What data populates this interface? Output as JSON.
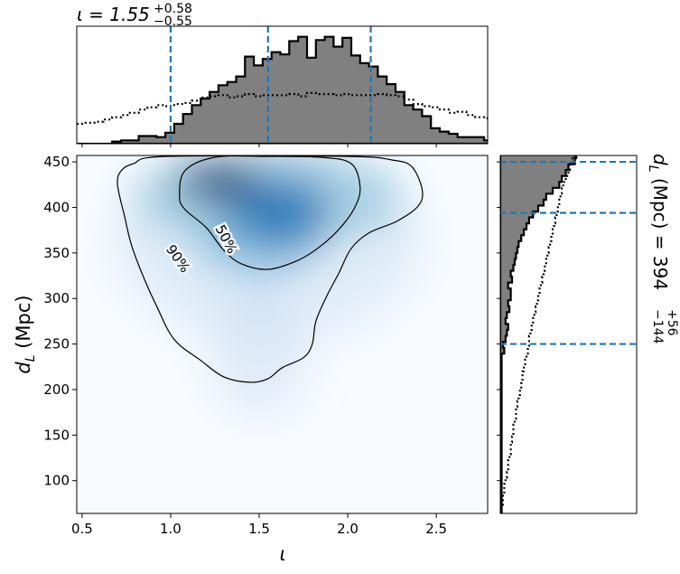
{
  "chart_data": [
    {
      "type": "heatmap",
      "name": "joint posterior",
      "xlabel": "ι",
      "ylabel_main": "d",
      "ylabel_sub": "L",
      "ylabel_unit": "(Mpc)",
      "xlim": [
        0.47,
        2.79
      ],
      "ylim": [
        64,
        457
      ],
      "xticks": [
        0.5,
        1.0,
        1.5,
        2.0,
        2.5
      ],
      "xtick_labels": [
        "0.5",
        "1.0",
        "1.5",
        "2.0",
        "2.5"
      ],
      "yticks": [
        100,
        150,
        200,
        250,
        300,
        350,
        400,
        450
      ],
      "ytick_labels": [
        "100",
        "150",
        "200",
        "250",
        "300",
        "350",
        "400",
        "450"
      ],
      "colormap": "Blues",
      "density_peaks": [
        {
          "x": 1.27,
          "y": 428,
          "weight": 1.0
        },
        {
          "x": 1.62,
          "y": 395,
          "weight": 0.85
        },
        {
          "x": 1.5,
          "y": 360,
          "weight": 0.45
        },
        {
          "x": 1.5,
          "y": 240,
          "weight": 0.12
        }
      ],
      "contours": [
        {
          "label": "50%",
          "level": 0.5,
          "points": [
            [
              1.05,
              412
            ],
            [
              1.08,
              440
            ],
            [
              1.25,
              455
            ],
            [
              1.55,
              456
            ],
            [
              1.85,
              455
            ],
            [
              2.02,
              448
            ],
            [
              2.07,
              422
            ],
            [
              2.04,
              400
            ],
            [
              1.96,
              378
            ],
            [
              1.85,
              358
            ],
            [
              1.72,
              342
            ],
            [
              1.55,
              332
            ],
            [
              1.4,
              338
            ],
            [
              1.3,
              353
            ],
            [
              1.2,
              378
            ],
            [
              1.08,
              398
            ]
          ]
        },
        {
          "label": "90%",
          "level": 0.9,
          "points": [
            [
              0.79,
              448
            ],
            [
              0.98,
              456
            ],
            [
              2.0,
              456
            ],
            [
              2.25,
              452
            ],
            [
              2.36,
              445
            ],
            [
              2.42,
              420
            ],
            [
              2.4,
              402
            ],
            [
              2.28,
              385
            ],
            [
              2.12,
              372
            ],
            [
              2.02,
              355
            ],
            [
              1.95,
              328
            ],
            [
              1.88,
              302
            ],
            [
              1.82,
              275
            ],
            [
              1.8,
              250
            ],
            [
              1.75,
              235
            ],
            [
              1.63,
              224
            ],
            [
              1.55,
              212
            ],
            [
              1.45,
              208
            ],
            [
              1.3,
              214
            ],
            [
              1.17,
              232
            ],
            [
              1.02,
              255
            ],
            [
              0.92,
              292
            ],
            [
              0.85,
              322
            ],
            [
              0.78,
              358
            ],
            [
              0.74,
              390
            ],
            [
              0.7,
              425
            ],
            [
              0.72,
              440
            ]
          ]
        }
      ],
      "contour_label_text": [
        "50%",
        "90%"
      ]
    },
    {
      "type": "bar",
      "name": "ι marginal histogram",
      "title_prefix": "ι = 1.55",
      "title_plus": "+0.58",
      "title_minus": "−0.55",
      "median": 1.55,
      "lower": 1.0,
      "upper": 2.13,
      "bin_start": 0.47,
      "bin_width": 0.05,
      "counts": [
        0,
        0,
        0,
        0,
        0.02,
        0.03,
        0.03,
        0.07,
        0.07,
        0.06,
        0.1,
        0.18,
        0.27,
        0.35,
        0.41,
        0.47,
        0.53,
        0.56,
        0.61,
        0.79,
        0.71,
        0.77,
        0.83,
        0.81,
        0.93,
        0.97,
        0.78,
        0.94,
        0.97,
        0.88,
        0.96,
        0.8,
        0.73,
        0.7,
        0.61,
        0.54,
        0.47,
        0.35,
        0.31,
        0.25,
        0.14,
        0.11,
        0.09,
        0.06,
        0.06,
        0.06,
        0.03,
        0.03,
        0.01,
        0.01,
        0,
        0
      ],
      "prior_dotted": [
        0.18,
        0.19,
        0.2,
        0.22,
        0.24,
        0.26,
        0.28,
        0.31,
        0.33,
        0.35,
        0.34,
        0.36,
        0.37,
        0.39,
        0.42,
        0.43,
        0.44,
        0.42,
        0.43,
        0.45,
        0.43,
        0.44,
        0.44,
        0.44,
        0.45,
        0.43,
        0.46,
        0.45,
        0.45,
        0.44,
        0.45,
        0.44,
        0.44,
        0.44,
        0.45,
        0.44,
        0.43,
        0.4,
        0.36,
        0.34,
        0.33,
        0.31,
        0.28,
        0.29,
        0.26,
        0.24,
        0.23,
        0.21,
        0.19,
        0.18,
        0.16,
        0.15
      ]
    },
    {
      "type": "bar",
      "name": "d_L marginal histogram",
      "title_text": "d",
      "title_sub": "L",
      "title_unit": "(Mpc) = 394",
      "title_plus": "+56",
      "title_minus": "−144",
      "median": 394,
      "lower": 250,
      "upper": 450,
      "bin_start": 64,
      "bin_width": 6.5,
      "counts": [
        0.01,
        0.01,
        0.01,
        0.01,
        0.01,
        0.01,
        0.01,
        0.01,
        0.01,
        0.01,
        0.01,
        0.01,
        0.01,
        0.01,
        0.01,
        0.01,
        0.01,
        0.01,
        0.01,
        0.01,
        0.01,
        0.01,
        0.01,
        0.01,
        0.01,
        0.01,
        0.01,
        0.03,
        0.02,
        0.04,
        0.05,
        0.06,
        0.04,
        0.05,
        0.07,
        0.06,
        0.08,
        0.08,
        0.06,
        0.09,
        0.08,
        0.1,
        0.11,
        0.12,
        0.13,
        0.14,
        0.16,
        0.18,
        0.2,
        0.22,
        0.25,
        0.29,
        0.33,
        0.35,
        0.4,
        0.45,
        0.47,
        0.5,
        0.52,
        0.57,
        0.58,
        0.62,
        0.61
      ],
      "prior_dotted": [
        0.01,
        0.02,
        0.02,
        0.03,
        0.03,
        0.04,
        0.05,
        0.06,
        0.06,
        0.07,
        0.08,
        0.08,
        0.09,
        0.1,
        0.1,
        0.11,
        0.12,
        0.12,
        0.13,
        0.14,
        0.15,
        0.16,
        0.17,
        0.17,
        0.18,
        0.19,
        0.2,
        0.21,
        0.22,
        0.22,
        0.23,
        0.24,
        0.25,
        0.26,
        0.27,
        0.28,
        0.29,
        0.3,
        0.31,
        0.32,
        0.33,
        0.34,
        0.35,
        0.36,
        0.37,
        0.38,
        0.39,
        0.4,
        0.41,
        0.42,
        0.43,
        0.44,
        0.45,
        0.46,
        0.47,
        0.48,
        0.5,
        0.52,
        0.53,
        0.55,
        0.57,
        0.58,
        0.6
      ]
    }
  ],
  "colors": {
    "histogram_fill": "#808080",
    "histogram_edge": "#000000",
    "quantile_line": "#1f77b4",
    "contour": "#000000",
    "density_low": "#f7fbff",
    "density_high": "#08306b"
  }
}
